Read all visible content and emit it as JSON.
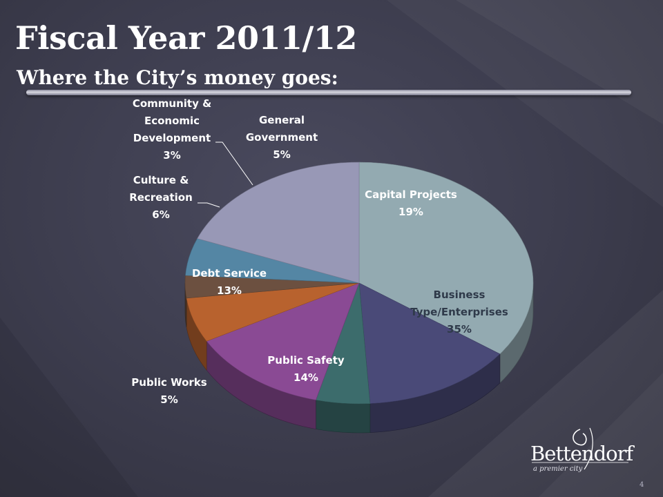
{
  "slide": {
    "title": "Fiscal Year 2011/12",
    "subtitle": "Where the City’s money goes:",
    "page_number": "4"
  },
  "logo": {
    "name": "Bettendorf",
    "tagline": "a premier city"
  },
  "colors": {
    "background": "#3c3c4d",
    "title_text": "#ffffff"
  },
  "chart_data": {
    "type": "pie",
    "style": "3d",
    "title": "",
    "unit": "%",
    "slices": [
      {
        "label_lines": [
          "Business",
          "Type/Enterprises",
          "35%"
        ],
        "value": 35,
        "color": "#93aab1",
        "label_color": "#2f3a4a"
      },
      {
        "label_lines": [
          "Public Safety",
          "14%"
        ],
        "value": 14,
        "color": "#4a4a78",
        "label_color": "#ffffff"
      },
      {
        "label_lines": [
          "Public Works",
          "5%"
        ],
        "value": 5,
        "color": "#3c6c6c",
        "label_color": "#ffffff"
      },
      {
        "label_lines": [
          "Debt Service",
          "13%"
        ],
        "value": 13,
        "color": "#8a4a94",
        "label_color": "#ffffff"
      },
      {
        "label_lines": [
          "Culture &",
          "Recreation",
          "6%"
        ],
        "value": 6,
        "color": "#b8622e",
        "label_color": "#ffffff"
      },
      {
        "label_lines": [
          "Community &",
          "Economic",
          "Development",
          "3%"
        ],
        "value": 3,
        "color": "#6c5040",
        "label_color": "#ffffff"
      },
      {
        "label_lines": [
          "General",
          "Government",
          "5%"
        ],
        "value": 5,
        "color": "#5486a4",
        "label_color": "#ffffff"
      },
      {
        "label_lines": [
          "Capital Projects",
          "19%"
        ],
        "value": 19,
        "color": "#9898b6",
        "label_color": "#ffffff"
      }
    ]
  }
}
